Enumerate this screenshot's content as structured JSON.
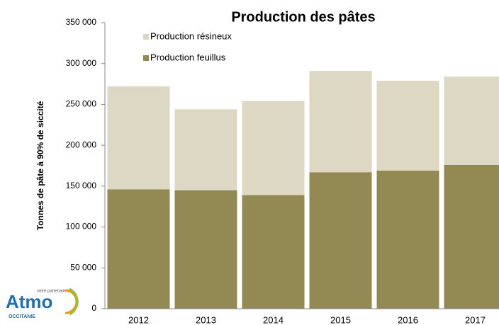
{
  "chart_data": {
    "type": "stacked_bar",
    "title": "Production des pâtes",
    "y_label": "Tonnes de pâte à 90% de siccité",
    "categories": [
      "2012",
      "2013",
      "2014",
      "2015",
      "2016",
      "2017"
    ],
    "series": [
      {
        "name": "Production résineux",
        "color": "#ddd8c4",
        "values": [
          126000,
          99000,
          115000,
          124000,
          110000,
          108000
        ]
      },
      {
        "name": "Production feuillus",
        "color": "#938953",
        "values": [
          146000,
          145000,
          139000,
          167000,
          169000,
          176000
        ]
      }
    ],
    "ylim": [
      0,
      350000
    ],
    "yticks": [
      0,
      {
        "value": 50000,
        "label": "50 000"
      },
      {
        "value": 100000,
        "label": "100 000"
      },
      {
        "value": 150000,
        "label": "150 000"
      },
      {
        "value": 200000,
        "label": "200 000"
      },
      {
        "value": 250000,
        "label": "250 000"
      },
      {
        "value": 300000,
        "label": "300 000"
      },
      {
        "value": 350000,
        "label": "350 000"
      }
    ]
  },
  "logo": {
    "name": "Atmo",
    "tagline": "votre partenaire air",
    "region": "OCCITANIE"
  }
}
